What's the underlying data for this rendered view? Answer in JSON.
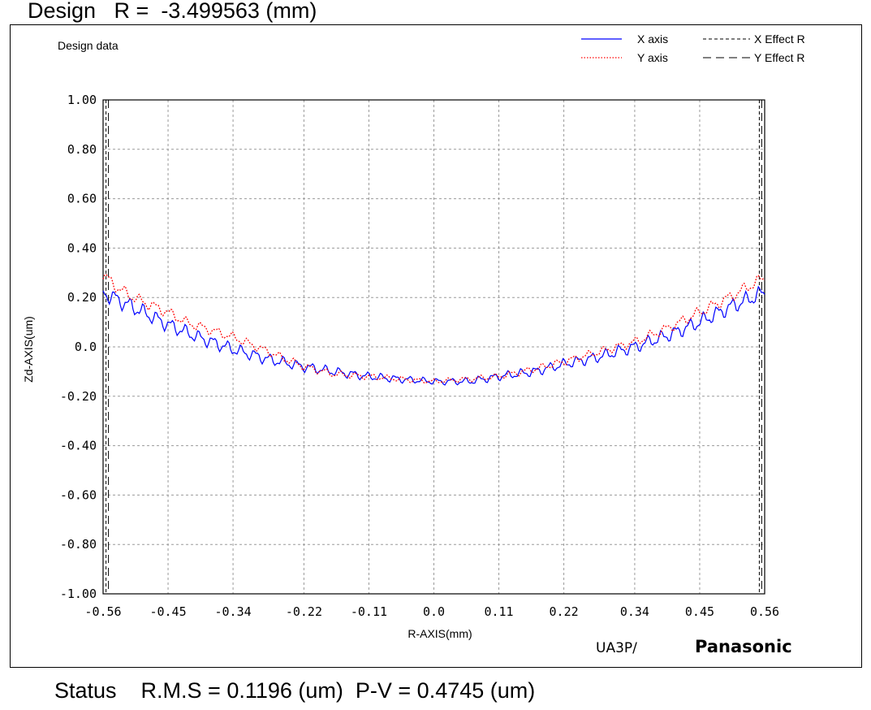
{
  "header": {
    "title": "Design   R =  -3.499563 (mm)"
  },
  "status": {
    "text": "Status    R.M.S = 0.1196 (um)  P-V = 0.4745 (um)"
  },
  "footer": {
    "model": "UA3P/",
    "brand": "Panasonic"
  },
  "chart_data": {
    "type": "line",
    "title": "Design data",
    "xlabel": "R-AXIS(mm)",
    "ylabel": "Zd-AXIS(um)",
    "xlim": [
      -0.56,
      0.56
    ],
    "ylim": [
      -1.0,
      1.0
    ],
    "x_ticks": [
      -0.56,
      -0.45,
      -0.34,
      -0.22,
      -0.11,
      0.0,
      0.11,
      0.22,
      0.34,
      0.45,
      0.56
    ],
    "x_tick_labels": [
      "-0.56",
      "-0.45",
      "-0.34",
      "-0.22",
      "-0.11",
      "0.0",
      "0.11",
      "0.22",
      "0.34",
      "0.45",
      "0.56"
    ],
    "y_ticks": [
      1.0,
      0.8,
      0.6,
      0.4,
      0.2,
      0.0,
      -0.2,
      -0.4,
      -0.6,
      -0.8,
      -1.0
    ],
    "y_tick_labels": [
      "1.00",
      "0.80",
      "0.60",
      "0.40",
      "0.20",
      "0.0",
      "-0.20",
      "-0.40",
      "-0.60",
      "-0.80",
      "-1.00"
    ],
    "grid": true,
    "legend_position": "top-right",
    "effect_r": [
      -0.553,
      0.553
    ],
    "series": [
      {
        "name": "X axis",
        "color": "#0000ff",
        "style": "solid",
        "x": [
          -0.56,
          -0.5,
          -0.45,
          -0.4,
          -0.34,
          -0.28,
          -0.22,
          -0.17,
          -0.11,
          -0.06,
          0.0,
          0.06,
          0.11,
          0.17,
          0.22,
          0.28,
          0.34,
          0.4,
          0.45,
          0.5,
          0.56
        ],
        "y": [
          0.22,
          0.15,
          0.09,
          0.04,
          -0.01,
          -0.05,
          -0.08,
          -0.1,
          -0.12,
          -0.13,
          -0.14,
          -0.14,
          -0.12,
          -0.1,
          -0.07,
          -0.04,
          0.0,
          0.05,
          0.1,
          0.16,
          0.22
        ]
      },
      {
        "name": "Y axis",
        "color": "#ff0000",
        "style": "dotted",
        "x": [
          -0.56,
          -0.53,
          -0.5,
          -0.47,
          -0.45,
          -0.42,
          -0.38,
          -0.34,
          -0.28,
          -0.22,
          -0.17,
          -0.11,
          -0.06,
          0.0,
          0.06,
          0.11,
          0.17,
          0.22,
          0.28,
          0.34,
          0.4,
          0.45,
          0.5,
          0.56
        ],
        "y": [
          0.29,
          0.23,
          0.19,
          0.16,
          0.14,
          0.1,
          0.07,
          0.04,
          -0.02,
          -0.08,
          -0.11,
          -0.12,
          -0.13,
          -0.14,
          -0.13,
          -0.12,
          -0.09,
          -0.06,
          -0.02,
          0.02,
          0.08,
          0.14,
          0.2,
          0.28
        ]
      },
      {
        "name": "X Effect R",
        "color": "#000000",
        "style": "dashed"
      },
      {
        "name": "Y Effect R",
        "color": "#000000",
        "style": "long-dash"
      }
    ]
  }
}
